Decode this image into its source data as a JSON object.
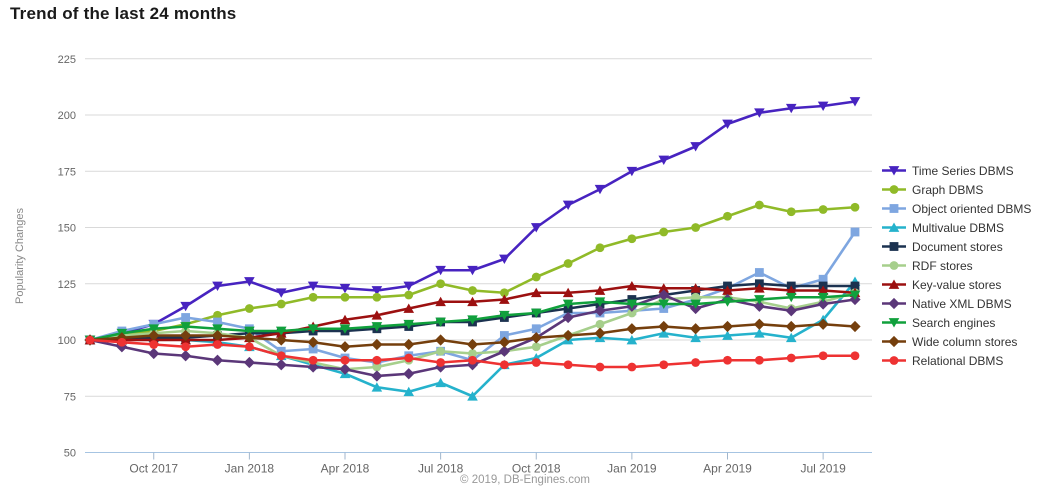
{
  "page": {
    "title": "Trend of the last 24 months",
    "footer": "© 2019, DB-Engines.com"
  },
  "chart_data": {
    "type": "line",
    "title": "Trend of the last 24 months",
    "ylabel": "Popularity Changes",
    "ylim": [
      50,
      225
    ],
    "y_ticks": [
      50,
      75,
      100,
      125,
      150,
      175,
      200,
      225
    ],
    "grid": true,
    "legend_position": "right",
    "grid_color": "#d9d9d9",
    "axis_line_color": "#a6c4e2",
    "tick_color": "#a0b6cc",
    "tick_label_color": "#666666",
    "x": [
      "Aug 2017",
      "Sep 2017",
      "Oct 2017",
      "Nov 2017",
      "Dec 2017",
      "Jan 2018",
      "Feb 2018",
      "Mar 2018",
      "Apr 2018",
      "May 2018",
      "Jun 2018",
      "Jul 2018",
      "Aug 2018",
      "Sep 2018",
      "Oct 2018",
      "Nov 2018",
      "Dec 2018",
      "Jan 2019",
      "Feb 2019",
      "Mar 2019",
      "Apr 2019",
      "May 2019",
      "Jun 2019",
      "Jul 2019",
      "Aug 2019"
    ],
    "x_tick_indices": [
      2,
      5,
      8,
      11,
      14,
      17,
      20,
      23
    ],
    "x_tick_labels": [
      "Oct 2017",
      "Jan 2018",
      "Apr 2018",
      "Jul 2018",
      "Oct 2018",
      "Jan 2019",
      "Apr 2019",
      "Jul 2019"
    ],
    "series": [
      {
        "name": "Time Series DBMS",
        "color": "#4723c0",
        "marker": "triangle-down",
        "values": [
          100,
          103,
          107,
          115,
          124,
          126,
          121,
          124,
          123,
          122,
          124,
          131,
          131,
          136,
          150,
          160,
          167,
          175,
          180,
          186,
          196,
          201,
          203,
          204,
          206
        ]
      },
      {
        "name": "Graph DBMS",
        "color": "#90ba28",
        "marker": "circle",
        "values": [
          100,
          102,
          104,
          107,
          111,
          114,
          116,
          119,
          119,
          119,
          120,
          125,
          122,
          121,
          128,
          134,
          141,
          145,
          148,
          150,
          155,
          160,
          157,
          158,
          159
        ]
      },
      {
        "name": "Object oriented DBMS",
        "color": "#7ea6e0",
        "marker": "square",
        "values": [
          100,
          104,
          107,
          110,
          108,
          105,
          95,
          96,
          92,
          90,
          93,
          95,
          91,
          102,
          105,
          112,
          112,
          113,
          114,
          118,
          123,
          130,
          123,
          127,
          148
        ]
      },
      {
        "name": "Multivalue DBMS",
        "color": "#25b2cc",
        "marker": "triangle-up",
        "values": [
          100,
          100,
          101,
          100,
          99,
          97,
          93,
          89,
          85,
          79,
          77,
          81,
          75,
          89,
          92,
          100,
          101,
          100,
          103,
          101,
          102,
          103,
          101,
          109,
          126
        ]
      },
      {
        "name": "Document stores",
        "color": "#1c3250",
        "marker": "square",
        "values": [
          100,
          100,
          101,
          101,
          102,
          103,
          103,
          104,
          104,
          105,
          106,
          108,
          108,
          110,
          112,
          114,
          116,
          118,
          120,
          122,
          124,
          125,
          124,
          124,
          124
        ]
      },
      {
        "name": "RDF stores",
        "color": "#a6cf8c",
        "marker": "circle",
        "values": [
          100,
          102,
          103,
          104,
          103,
          101,
          93,
          90,
          87,
          88,
          91,
          95,
          94,
          95,
          97,
          102,
          107,
          112,
          118,
          119,
          119,
          117,
          114,
          117,
          121
        ]
      },
      {
        "name": "Key-value stores",
        "color": "#9c1010",
        "marker": "triangle-up",
        "values": [
          100,
          100,
          100,
          100,
          100,
          101,
          103,
          106,
          109,
          111,
          114,
          117,
          117,
          118,
          121,
          121,
          122,
          124,
          123,
          123,
          122,
          123,
          122,
          122,
          121
        ]
      },
      {
        "name": "Native XML DBMS",
        "color": "#5b3779",
        "marker": "diamond",
        "values": [
          100,
          97,
          94,
          93,
          91,
          90,
          89,
          88,
          87,
          84,
          85,
          88,
          89,
          95,
          101,
          110,
          113,
          115,
          120,
          114,
          118,
          115,
          113,
          116,
          118
        ]
      },
      {
        "name": "Search engines",
        "color": "#10a03c",
        "marker": "triangle-down",
        "values": [
          100,
          103,
          105,
          106,
          105,
          104,
          104,
          105,
          105,
          106,
          107,
          108,
          109,
          111,
          112,
          116,
          117,
          116,
          116,
          116,
          117,
          118,
          119,
          119,
          120
        ]
      },
      {
        "name": "Wide column stores",
        "color": "#753f0d",
        "marker": "diamond",
        "values": [
          100,
          101,
          102,
          102,
          102,
          101,
          100,
          99,
          97,
          98,
          98,
          100,
          98,
          99,
          101,
          102,
          103,
          105,
          106,
          105,
          106,
          107,
          106,
          107,
          106
        ]
      },
      {
        "name": "Relational DBMS",
        "color": "#ee3232",
        "marker": "circle",
        "values": [
          100,
          99,
          98,
          97,
          98,
          97,
          93,
          91,
          91,
          91,
          92,
          90,
          91,
          89,
          90,
          89,
          88,
          88,
          89,
          90,
          91,
          91,
          92,
          93,
          93
        ]
      }
    ]
  }
}
